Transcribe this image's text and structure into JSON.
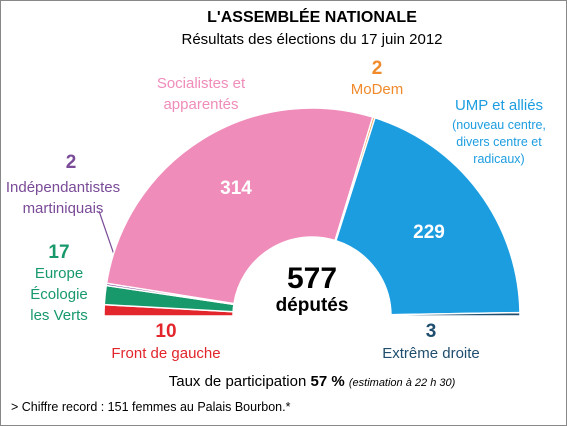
{
  "chart_data": {
    "type": "hemicycle",
    "title": "L'ASSEMBLÉE NATIONALE",
    "subtitle": "Résultats des élections du 17 juin 2012",
    "total": 577,
    "total_label": "députés",
    "series": [
      {
        "name": "Front de gauche",
        "color": "#e2262c",
        "value": 10
      },
      {
        "name": "Europe Écologie les Verts",
        "color": "#17996b",
        "value": 17
      },
      {
        "name": "Indépendantistes martiniquais",
        "color": "#7a4b98",
        "value": 2
      },
      {
        "name": "Socialistes et apparentés",
        "color": "#ef8cb9",
        "value": 314
      },
      {
        "name": "MoDem",
        "color": "#f08a2b",
        "value": 2
      },
      {
        "name": "UMP et alliés",
        "note": "(nouveau centre, divers centre et radicaux)",
        "color": "#1c9de0",
        "value": 229
      },
      {
        "name": "Extrême droite",
        "color": "#1e4d6d",
        "value": 3
      }
    ],
    "participation_label": "Taux de participation",
    "participation_rate": "57 %",
    "participation_note": "(estimation à 22 h 30)",
    "footnote": "> Chiffre record : 151 femmes au Palais Bourbon.*"
  }
}
